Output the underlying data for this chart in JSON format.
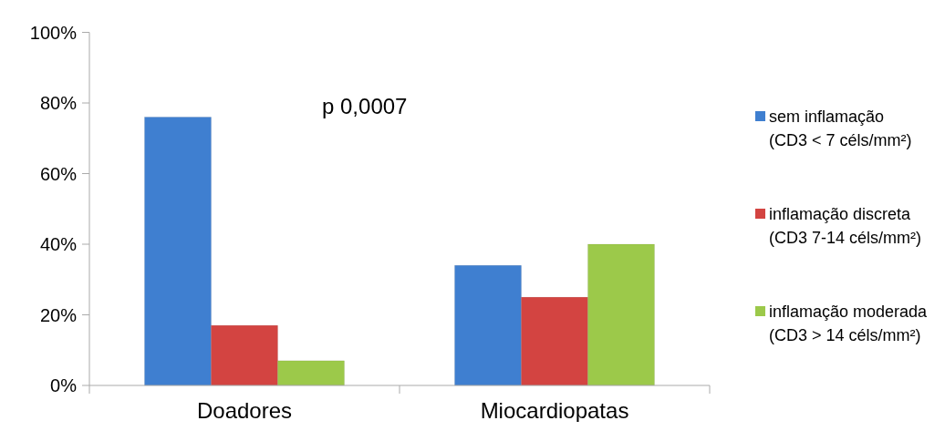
{
  "chart_data": {
    "type": "bar",
    "categories": [
      "Doadores",
      "Miocardiopatas"
    ],
    "series": [
      {
        "name": "sem inflamação\n(CD3 < 7 céls/mm²)",
        "color": "#3f7fd0",
        "values": [
          76,
          34
        ]
      },
      {
        "name": "inflamação discreta\n(CD3 7-14 céls/mm²)",
        "color": "#d34441",
        "values": [
          17,
          25
        ]
      },
      {
        "name": "inflamação moderada\n(CD3 > 14 céls/mm²)",
        "color": "#9cc94a",
        "values": [
          7,
          40
        ]
      }
    ],
    "ylim": [
      0,
      100
    ],
    "yticks": [
      {
        "value": 0,
        "label": "0%"
      },
      {
        "value": 20,
        "label": "20%"
      },
      {
        "value": 40,
        "label": "40%"
      },
      {
        "value": 60,
        "label": "60%"
      },
      {
        "value": 80,
        "label": "80%"
      },
      {
        "value": 100,
        "label": "100%"
      }
    ],
    "annotations": [
      "p 0,0007"
    ],
    "legend": "right",
    "grid": false
  }
}
